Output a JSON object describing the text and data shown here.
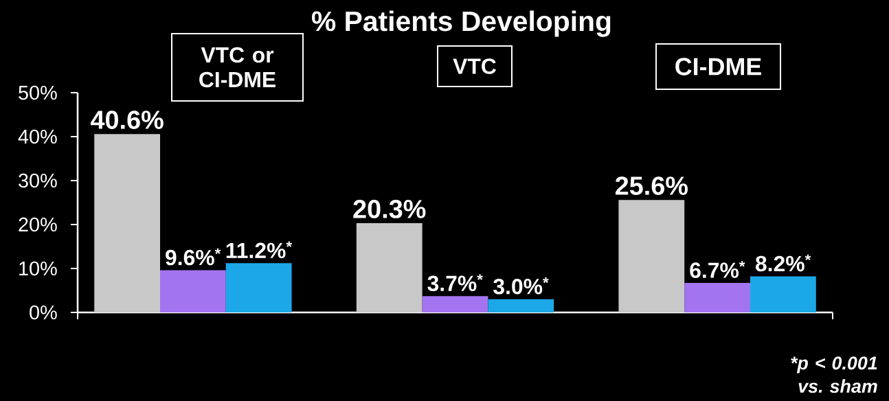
{
  "chart_data": {
    "type": "bar",
    "title": "% Patients Developing",
    "categories": [
      "VTC or CI-DME",
      "VTC",
      "CI-DME"
    ],
    "series": [
      {
        "color": "#c8c8c8",
        "values": [
          40.6,
          20.3,
          25.6
        ],
        "value_labels": [
          "40.6%",
          "20.3%",
          "25.6%"
        ]
      },
      {
        "color": "#a374f0",
        "values": [
          9.6,
          3.7,
          6.7
        ],
        "value_labels": [
          "9.6%$^{*}$",
          "3.7%$^{*}$",
          "6.7%$^{*}$"
        ]
      },
      {
        "color": "#1ca8e8",
        "values": [
          11.2,
          3.0,
          8.2
        ],
        "value_labels": [
          "11.2%$^{*}$",
          "3.0%$^{*}$",
          "8.2%$^{*}$"
        ]
      }
    ],
    "ylim": [
      0,
      50
    ],
    "yticks": [
      {
        "value": 0,
        "label": "0%"
      },
      {
        "value": 10,
        "label": "10%"
      },
      {
        "value": 20,
        "label": "20%"
      },
      {
        "value": 30,
        "label": "30%"
      },
      {
        "value": 40,
        "label": "40%"
      },
      {
        "value": 50,
        "label": "50%"
      }
    ],
    "annotations": [
      "*p < 0.001 vs. sham"
    ]
  }
}
